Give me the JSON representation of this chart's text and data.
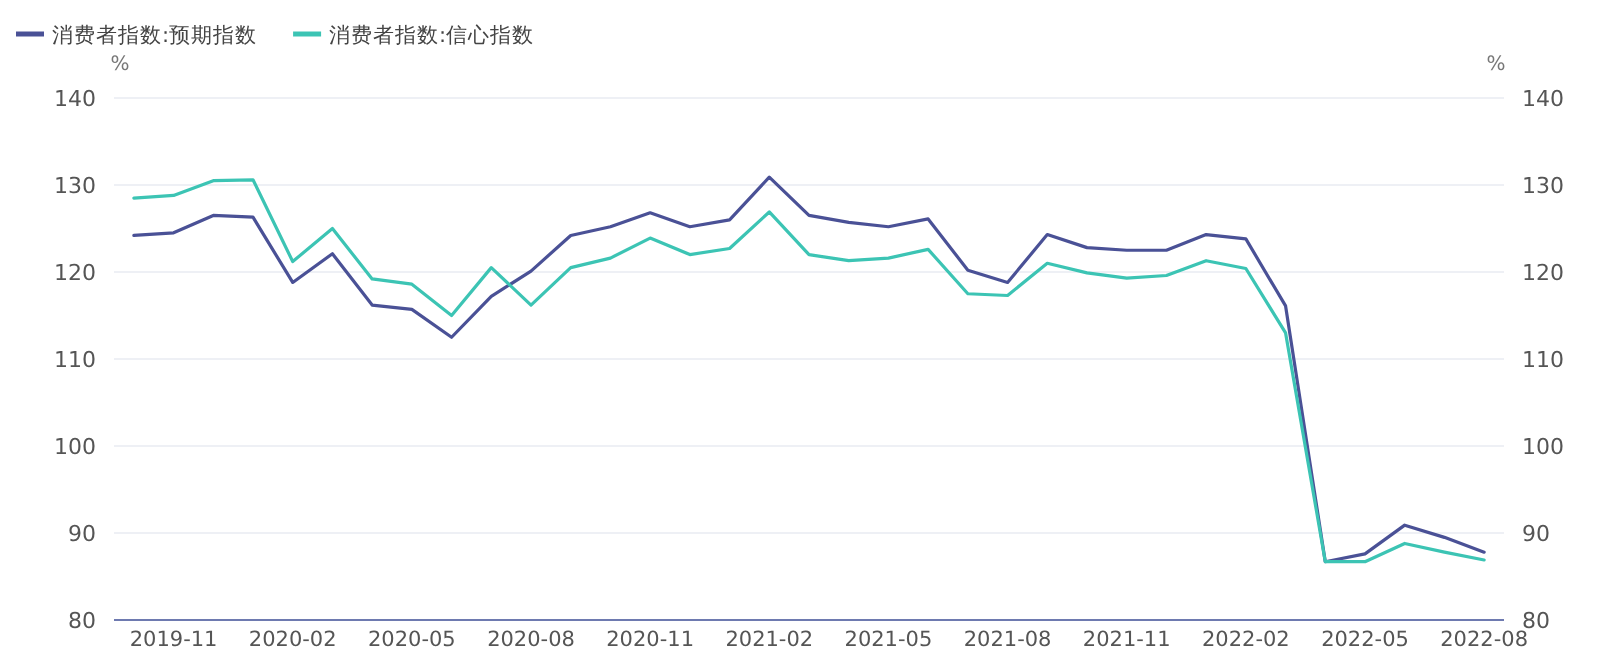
{
  "chart_data": {
    "type": "line",
    "categories": [
      null,
      "2019-11",
      null,
      null,
      "2020-02",
      null,
      null,
      "2020-05",
      null,
      null,
      "2020-08",
      null,
      null,
      "2020-11",
      null,
      null,
      "2021-02",
      null,
      null,
      "2021-05",
      null,
      null,
      "2021-08",
      null,
      null,
      "2021-11",
      null,
      null,
      "2022-02",
      null,
      null,
      "2022-05",
      null,
      null,
      "2022-08"
    ],
    "series": [
      {
        "name": "消费者指数:预期指数",
        "color": "#4a5196",
        "values": [
          124.2,
          124.5,
          126.5,
          126.3,
          118.8,
          122.1,
          116.2,
          115.7,
          112.5,
          117.2,
          120.1,
          124.2,
          125.2,
          126.8,
          125.2,
          126.0,
          130.9,
          126.5,
          125.7,
          125.2,
          126.1,
          120.2,
          118.8,
          124.3,
          122.8,
          122.5,
          122.5,
          124.3,
          123.8,
          116.1,
          86.7,
          87.6,
          90.9,
          89.5,
          87.8
        ]
      },
      {
        "name": "消费者指数:信心指数",
        "color": "#3cc4b4",
        "values": [
          128.5,
          128.8,
          130.5,
          130.6,
          121.2,
          125.0,
          119.2,
          118.6,
          115.0,
          120.5,
          116.2,
          120.5,
          121.6,
          123.9,
          122.0,
          122.7,
          126.9,
          122.0,
          121.3,
          121.6,
          122.6,
          117.5,
          117.3,
          121.0,
          119.9,
          119.3,
          119.6,
          121.3,
          120.4,
          113.0,
          86.7,
          86.7,
          88.8,
          87.8,
          86.9
        ]
      }
    ],
    "ylabel": "%",
    "y2label": "%",
    "ylim": [
      80,
      140
    ],
    "yticks": [
      80,
      90,
      100,
      110,
      120,
      130,
      140
    ],
    "y2lim": [
      80,
      140
    ],
    "y2ticks": [
      80,
      90,
      100,
      110,
      120,
      130,
      140
    ],
    "grid": "y",
    "legend": "top left",
    "line_style": "solid",
    "marker": "none"
  }
}
